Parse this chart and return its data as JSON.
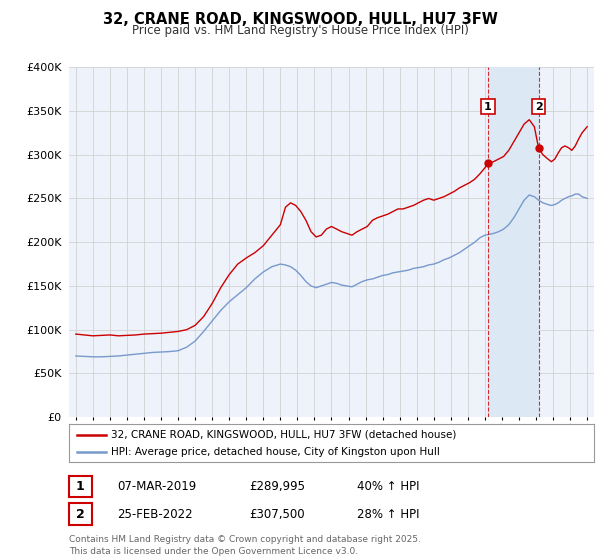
{
  "title": "32, CRANE ROAD, KINGSWOOD, HULL, HU7 3FW",
  "subtitle": "Price paid vs. HM Land Registry's House Price Index (HPI)",
  "legend_line1": "32, CRANE ROAD, KINGSWOOD, HULL, HU7 3FW (detached house)",
  "legend_line2": "HPI: Average price, detached house, City of Kingston upon Hull",
  "sale1_date": "07-MAR-2019",
  "sale1_price": "£289,995",
  "sale1_hpi": "40% ↑ HPI",
  "sale2_date": "25-FEB-2022",
  "sale2_price": "£307,500",
  "sale2_hpi": "28% ↑ HPI",
  "footer": "Contains HM Land Registry data © Crown copyright and database right 2025.\nThis data is licensed under the Open Government Licence v3.0.",
  "sale1_year": 2019.18,
  "sale2_year": 2022.15,
  "red_color": "#cc0000",
  "blue_color": "#7799cc",
  "highlight_color": "#dde8f5",
  "background_color": "#eef2fa",
  "grid_color": "#cccccc",
  "ylim": [
    0,
    400000
  ],
  "xlim_start": 1994.6,
  "xlim_end": 2025.4,
  "red_data": [
    [
      1995.0,
      95000
    ],
    [
      1995.5,
      94000
    ],
    [
      1996.0,
      93000
    ],
    [
      1996.5,
      93500
    ],
    [
      1997.0,
      94000
    ],
    [
      1997.5,
      93000
    ],
    [
      1998.0,
      93500
    ],
    [
      1998.5,
      94000
    ],
    [
      1999.0,
      95000
    ],
    [
      1999.5,
      95500
    ],
    [
      2000.0,
      96000
    ],
    [
      2000.5,
      97000
    ],
    [
      2001.0,
      98000
    ],
    [
      2001.5,
      100000
    ],
    [
      2002.0,
      105000
    ],
    [
      2002.5,
      115000
    ],
    [
      2003.0,
      130000
    ],
    [
      2003.5,
      148000
    ],
    [
      2004.0,
      163000
    ],
    [
      2004.5,
      175000
    ],
    [
      2005.0,
      182000
    ],
    [
      2005.5,
      188000
    ],
    [
      2006.0,
      196000
    ],
    [
      2006.5,
      208000
    ],
    [
      2007.0,
      220000
    ],
    [
      2007.3,
      240000
    ],
    [
      2007.6,
      245000
    ],
    [
      2007.9,
      242000
    ],
    [
      2008.2,
      235000
    ],
    [
      2008.5,
      225000
    ],
    [
      2008.8,
      212000
    ],
    [
      2009.1,
      206000
    ],
    [
      2009.4,
      208000
    ],
    [
      2009.7,
      215000
    ],
    [
      2010.0,
      218000
    ],
    [
      2010.3,
      215000
    ],
    [
      2010.6,
      212000
    ],
    [
      2010.9,
      210000
    ],
    [
      2011.2,
      208000
    ],
    [
      2011.5,
      212000
    ],
    [
      2011.8,
      215000
    ],
    [
      2012.1,
      218000
    ],
    [
      2012.4,
      225000
    ],
    [
      2012.7,
      228000
    ],
    [
      2013.0,
      230000
    ],
    [
      2013.3,
      232000
    ],
    [
      2013.6,
      235000
    ],
    [
      2013.9,
      238000
    ],
    [
      2014.2,
      238000
    ],
    [
      2014.5,
      240000
    ],
    [
      2014.8,
      242000
    ],
    [
      2015.1,
      245000
    ],
    [
      2015.4,
      248000
    ],
    [
      2015.7,
      250000
    ],
    [
      2016.0,
      248000
    ],
    [
      2016.3,
      250000
    ],
    [
      2016.6,
      252000
    ],
    [
      2016.9,
      255000
    ],
    [
      2017.2,
      258000
    ],
    [
      2017.5,
      262000
    ],
    [
      2017.8,
      265000
    ],
    [
      2018.1,
      268000
    ],
    [
      2018.4,
      272000
    ],
    [
      2018.7,
      278000
    ],
    [
      2019.0,
      285000
    ],
    [
      2019.18,
      289995
    ],
    [
      2019.5,
      292000
    ],
    [
      2019.8,
      295000
    ],
    [
      2020.1,
      298000
    ],
    [
      2020.4,
      305000
    ],
    [
      2020.7,
      315000
    ],
    [
      2021.0,
      325000
    ],
    [
      2021.3,
      335000
    ],
    [
      2021.6,
      340000
    ],
    [
      2021.9,
      332000
    ],
    [
      2022.15,
      307500
    ],
    [
      2022.4,
      300000
    ],
    [
      2022.7,
      295000
    ],
    [
      2022.9,
      292000
    ],
    [
      2023.1,
      295000
    ],
    [
      2023.3,
      302000
    ],
    [
      2023.5,
      308000
    ],
    [
      2023.7,
      310000
    ],
    [
      2023.9,
      308000
    ],
    [
      2024.1,
      305000
    ],
    [
      2024.3,
      310000
    ],
    [
      2024.5,
      318000
    ],
    [
      2024.7,
      325000
    ],
    [
      2025.0,
      332000
    ]
  ],
  "blue_data": [
    [
      1995.0,
      70000
    ],
    [
      1995.5,
      69500
    ],
    [
      1996.0,
      69000
    ],
    [
      1996.5,
      69000
    ],
    [
      1997.0,
      69500
    ],
    [
      1997.5,
      70000
    ],
    [
      1998.0,
      71000
    ],
    [
      1998.5,
      72000
    ],
    [
      1999.0,
      73000
    ],
    [
      1999.5,
      74000
    ],
    [
      2000.0,
      74500
    ],
    [
      2000.5,
      75000
    ],
    [
      2001.0,
      76000
    ],
    [
      2001.5,
      80000
    ],
    [
      2002.0,
      87000
    ],
    [
      2002.5,
      98000
    ],
    [
      2003.0,
      110000
    ],
    [
      2003.5,
      122000
    ],
    [
      2004.0,
      132000
    ],
    [
      2004.5,
      140000
    ],
    [
      2005.0,
      148000
    ],
    [
      2005.5,
      158000
    ],
    [
      2006.0,
      166000
    ],
    [
      2006.5,
      172000
    ],
    [
      2007.0,
      175000
    ],
    [
      2007.3,
      174000
    ],
    [
      2007.6,
      172000
    ],
    [
      2007.9,
      168000
    ],
    [
      2008.2,
      162000
    ],
    [
      2008.5,
      155000
    ],
    [
      2008.8,
      150000
    ],
    [
      2009.1,
      148000
    ],
    [
      2009.4,
      150000
    ],
    [
      2009.7,
      152000
    ],
    [
      2010.0,
      154000
    ],
    [
      2010.3,
      153000
    ],
    [
      2010.6,
      151000
    ],
    [
      2010.9,
      150000
    ],
    [
      2011.2,
      149000
    ],
    [
      2011.5,
      152000
    ],
    [
      2011.8,
      155000
    ],
    [
      2012.1,
      157000
    ],
    [
      2012.4,
      158000
    ],
    [
      2012.7,
      160000
    ],
    [
      2013.0,
      162000
    ],
    [
      2013.3,
      163000
    ],
    [
      2013.6,
      165000
    ],
    [
      2013.9,
      166000
    ],
    [
      2014.2,
      167000
    ],
    [
      2014.5,
      168000
    ],
    [
      2014.8,
      170000
    ],
    [
      2015.1,
      171000
    ],
    [
      2015.4,
      172000
    ],
    [
      2015.7,
      174000
    ],
    [
      2016.0,
      175000
    ],
    [
      2016.3,
      177000
    ],
    [
      2016.6,
      180000
    ],
    [
      2016.9,
      182000
    ],
    [
      2017.2,
      185000
    ],
    [
      2017.5,
      188000
    ],
    [
      2017.8,
      192000
    ],
    [
      2018.1,
      196000
    ],
    [
      2018.4,
      200000
    ],
    [
      2018.7,
      205000
    ],
    [
      2019.0,
      208000
    ],
    [
      2019.5,
      210000
    ],
    [
      2019.8,
      212000
    ],
    [
      2020.1,
      215000
    ],
    [
      2020.4,
      220000
    ],
    [
      2020.7,
      228000
    ],
    [
      2021.0,
      238000
    ],
    [
      2021.3,
      248000
    ],
    [
      2021.6,
      254000
    ],
    [
      2021.9,
      252000
    ],
    [
      2022.15,
      248000
    ],
    [
      2022.4,
      245000
    ],
    [
      2022.7,
      243000
    ],
    [
      2022.9,
      242000
    ],
    [
      2023.1,
      243000
    ],
    [
      2023.3,
      245000
    ],
    [
      2023.5,
      248000
    ],
    [
      2023.7,
      250000
    ],
    [
      2023.9,
      252000
    ],
    [
      2024.1,
      253000
    ],
    [
      2024.3,
      255000
    ],
    [
      2024.5,
      255000
    ],
    [
      2024.7,
      252000
    ],
    [
      2025.0,
      250000
    ]
  ]
}
